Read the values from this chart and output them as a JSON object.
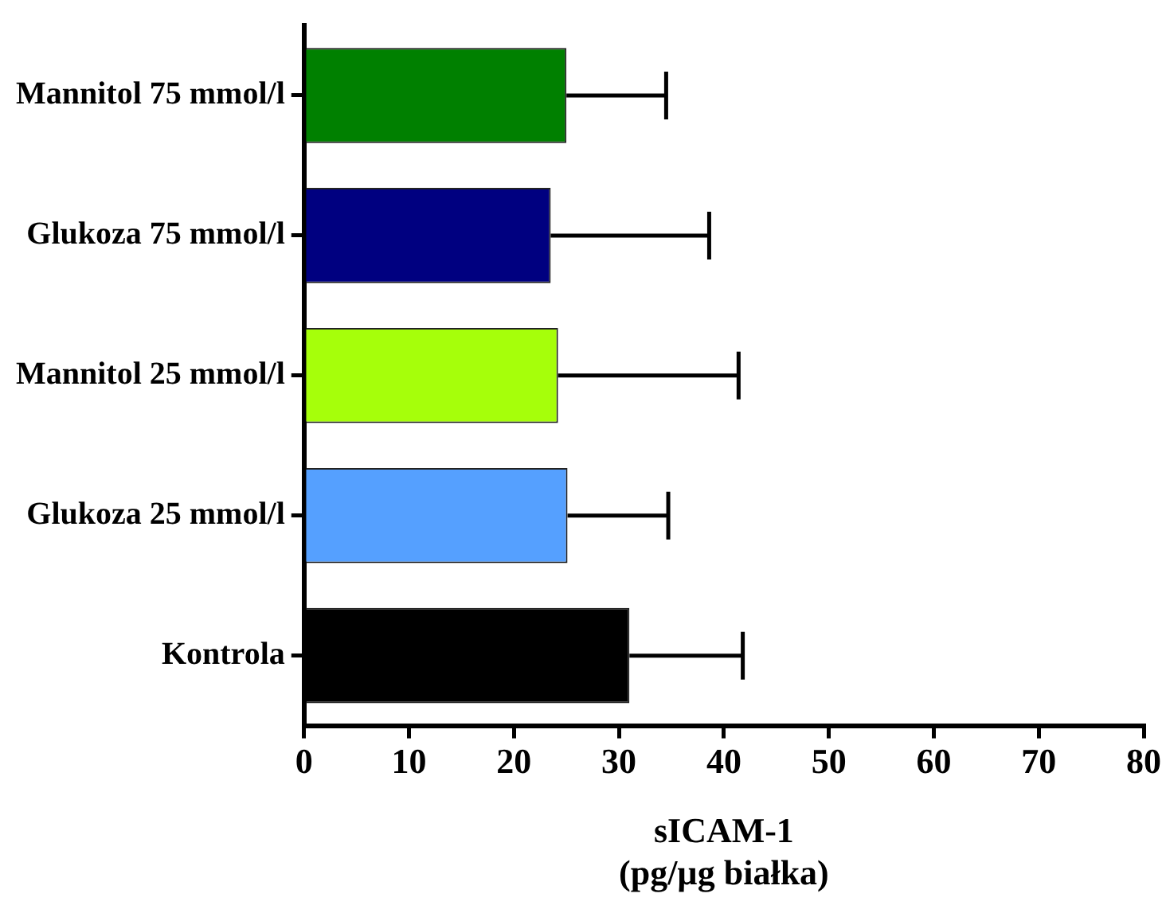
{
  "chart_data": {
    "type": "bar",
    "orientation": "horizontal",
    "xlabel": "sICAM-1\n(pg/µg białka)",
    "categories": [
      "Mannitol 75 mmol/l",
      "Glukoza 75 mmol/l",
      "Mannitol 25 mmol/l",
      "Glukoza 25 mmol/l",
      "Kontrola"
    ],
    "values": [
      25.0,
      23.5,
      24.2,
      25.1,
      31.0
    ],
    "colors": [
      "#008000",
      "#000080",
      "#a6ff0a",
      "#55a0ff",
      "#000000"
    ],
    "errors": [
      [
        25.0,
        34.5
      ],
      [
        23.5,
        38.6
      ],
      [
        24.2,
        41.4
      ],
      [
        25.1,
        34.7
      ],
      [
        31.0,
        41.8
      ]
    ],
    "xlim": [
      0,
      80
    ],
    "xticks": [
      0,
      10,
      20,
      30,
      40,
      50,
      60,
      70,
      80
    ],
    "grid": false,
    "legend": false
  }
}
